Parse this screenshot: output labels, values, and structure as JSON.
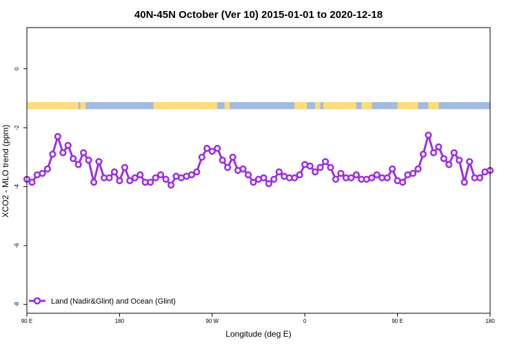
{
  "chart_data": {
    "type": "line",
    "title": "40N-45N October (Ver 10)   2015-01-01 to 2020-12-18",
    "xlabel": "Longitude (deg E)",
    "ylabel": "XCO2 - MLO trend (ppm)",
    "x_ticks": [
      {
        "value": 90,
        "label": "90 E"
      },
      {
        "value": 180,
        "label": "180"
      },
      {
        "value": 270,
        "label": "90 W"
      },
      {
        "value": 360,
        "label": "0"
      },
      {
        "value": 450,
        "label": "90 E"
      },
      {
        "value": 540,
        "label": "180"
      }
    ],
    "y_ticks": [
      {
        "value": 0,
        "label": "0"
      },
      {
        "value": -2,
        "label": "-2"
      },
      {
        "value": -4,
        "label": "-4"
      },
      {
        "value": -6,
        "label": "-6"
      },
      {
        "value": -8,
        "label": "-8"
      }
    ],
    "xlim": [
      90,
      540
    ],
    "ylim": [
      -8.3,
      1.4
    ],
    "land_ocean_band": {
      "y_range": [
        -1.37,
        -1.13
      ],
      "ocean_color": "#a4bcdc",
      "land_color": "#fcdc7c",
      "land_segments": [
        [
          90,
          140
        ],
        [
          142,
          147
        ],
        [
          213,
          275
        ],
        [
          282,
          287
        ],
        [
          350,
          362
        ],
        [
          370,
          375
        ],
        [
          378,
          410
        ],
        [
          415,
          425
        ],
        [
          450,
          470
        ],
        [
          480,
          490
        ]
      ]
    },
    "series": [
      {
        "name": "Land (Nadir&Glint) and Ocean (Glint)",
        "color": "#9b30e0",
        "x": [
          90,
          95,
          100,
          105,
          110,
          115,
          120,
          125,
          130,
          135,
          140,
          145,
          150,
          155,
          160,
          165,
          170,
          175,
          180,
          185,
          190,
          195,
          200,
          205,
          210,
          215,
          220,
          225,
          230,
          235,
          240,
          245,
          250,
          255,
          260,
          265,
          270,
          275,
          280,
          285,
          290,
          295,
          300,
          305,
          310,
          315,
          320,
          325,
          330,
          335,
          340,
          345,
          350,
          355,
          360,
          365,
          370,
          375,
          380,
          385,
          390,
          395,
          400,
          405,
          410,
          415,
          420,
          425,
          430,
          435,
          440,
          445,
          450,
          455,
          460,
          465,
          470,
          475,
          480,
          485,
          490,
          495,
          500,
          505,
          510,
          515,
          520,
          525,
          530,
          535,
          540
        ],
        "y": [
          -3.75,
          -3.85,
          -3.6,
          -3.55,
          -3.4,
          -2.9,
          -2.3,
          -2.85,
          -2.6,
          -3.05,
          -3.25,
          -2.85,
          -3.1,
          -3.85,
          -3.15,
          -3.7,
          -3.7,
          -3.5,
          -3.8,
          -3.35,
          -3.8,
          -3.7,
          -3.6,
          -3.85,
          -3.85,
          -3.7,
          -3.6,
          -3.75,
          -3.95,
          -3.65,
          -3.7,
          -3.65,
          -3.6,
          -3.5,
          -3.0,
          -2.7,
          -2.8,
          -2.7,
          -3.1,
          -3.35,
          -3.0,
          -3.45,
          -3.4,
          -3.6,
          -3.85,
          -3.75,
          -3.7,
          -3.9,
          -3.75,
          -3.5,
          -3.65,
          -3.7,
          -3.7,
          -3.6,
          -3.25,
          -3.3,
          -3.5,
          -3.35,
          -3.15,
          -3.35,
          -3.75,
          -3.55,
          -3.7,
          -3.7,
          -3.6,
          -3.75,
          -3.75,
          -3.7,
          -3.6,
          -3.7,
          -3.7,
          -3.4,
          -3.8,
          -3.85,
          -3.6,
          -3.55,
          -3.4,
          -2.9,
          -2.25,
          -2.85,
          -2.65,
          -3.05,
          -3.25,
          -2.85,
          -3.1,
          -3.85,
          -3.15,
          -3.7,
          -3.7,
          -3.5,
          -3.45
        ]
      }
    ],
    "legend": {
      "position": "bottom-left"
    },
    "grid": false
  }
}
